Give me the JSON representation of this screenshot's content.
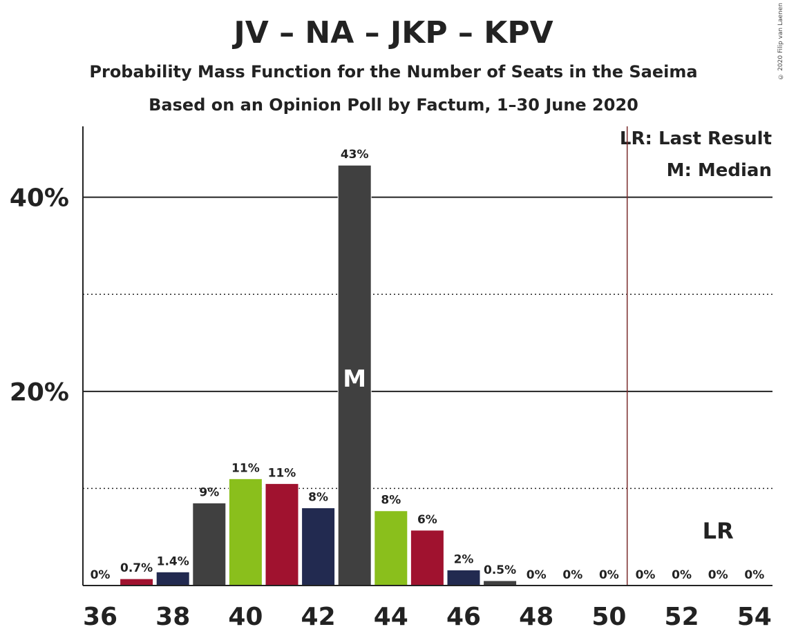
{
  "title": "JV – NA – JKP – KPV",
  "subtitle1": "Probability Mass Function for the Number of Seats in the Saeima",
  "subtitle2": "Based on an Opinion Poll by Factum, 1–30 June 2020",
  "copyright": "© 2020 Filip van Laenen",
  "legend": {
    "lr": "LR: Last Result",
    "m": "M: Median"
  },
  "chart_data": {
    "type": "bar",
    "x": [
      36,
      37,
      38,
      39,
      40,
      41,
      42,
      43,
      44,
      45,
      46,
      47,
      48,
      49,
      50,
      51,
      52,
      53,
      54
    ],
    "values": [
      0,
      0.7,
      1.4,
      8.5,
      11,
      10.5,
      8,
      43.3,
      7.7,
      5.7,
      1.6,
      0.5,
      0,
      0,
      0,
      0,
      0,
      0,
      0
    ],
    "labels": [
      "0%",
      "0.7%",
      "1.4%",
      "9%",
      "11%",
      "11%",
      "8%",
      "43%",
      "8%",
      "6%",
      "2%",
      "0.5%",
      "0%",
      "0%",
      "0%",
      "0%",
      "0%",
      "0%",
      "0%"
    ],
    "colors": [
      "#222a50",
      "#a0122f",
      "#222a50",
      "#404040",
      "#8abf1c",
      "#a0122f",
      "#222a50",
      "#404040",
      "#8abf1c",
      "#a0122f",
      "#222a50",
      "#404040",
      "#8abf1c",
      "#a0122f",
      "#222a50",
      "#404040",
      "#8abf1c",
      "#a0122f",
      "#222a50"
    ],
    "median": 43,
    "median_label": "M",
    "last_result": 53,
    "last_result_label": "LR",
    "majority_line": 50.5,
    "x_ticks": [
      36,
      38,
      40,
      42,
      44,
      46,
      48,
      50,
      52,
      54
    ],
    "y_ticks_major": [
      20,
      40
    ],
    "y_ticks_minor": [
      10,
      30
    ],
    "y_tick_labels": [
      "20%",
      "40%"
    ],
    "ylim": [
      0,
      47.3
    ]
  }
}
